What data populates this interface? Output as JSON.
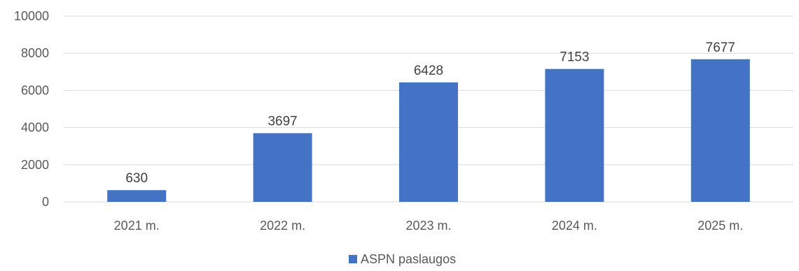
{
  "chart_data": {
    "type": "bar",
    "categories": [
      "2021 m.",
      "2022 m.",
      "2023 m.",
      "2024 m.",
      "2025 m."
    ],
    "series": [
      {
        "name": "ASPN paslaugos",
        "values": [
          630,
          3697,
          6428,
          7153,
          7677
        ],
        "color": "#4472c4"
      }
    ],
    "y_ticks": [
      0,
      2000,
      4000,
      6000,
      8000,
      10000
    ],
    "ylim": [
      0,
      10000
    ],
    "grid": true,
    "legend_position": "bottom-center",
    "data_labels": true
  }
}
